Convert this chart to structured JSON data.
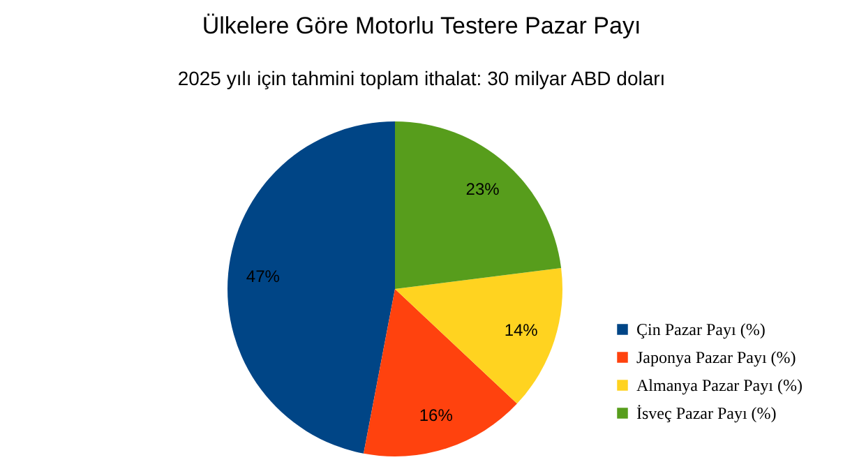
{
  "chart_data": {
    "type": "pie",
    "title": "Ülkelere Göre Motorlu Testere Pazar Payı",
    "subtitle": "2025 yılı için tahmini toplam ithalat: 30 milyar ABD doları",
    "categories": [
      "Çin Pazar Payı (%)",
      "Japonya Pazar Payı (%)",
      "Almanya Pazar Payı (%)",
      "İsveç Pazar Payı (%)"
    ],
    "values": [
      47,
      16,
      14,
      23
    ],
    "colors": [
      "#004586",
      "#ff420e",
      "#ffd320",
      "#579d1c"
    ],
    "value_labels": [
      "47%",
      "16%",
      "14%",
      "23%"
    ],
    "legend": "right"
  }
}
